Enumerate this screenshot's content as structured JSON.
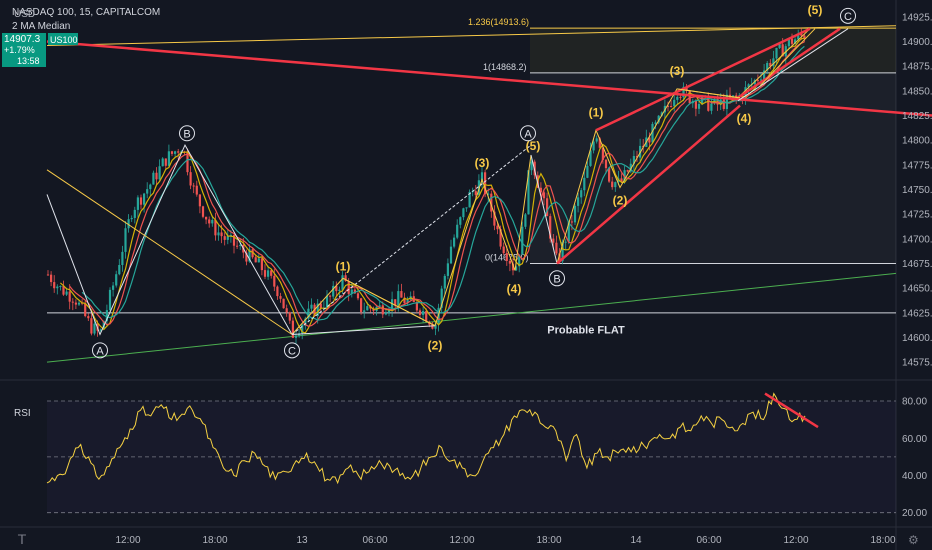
{
  "header": {
    "symbol_title": "NASDAQ 100, 15, CAPITALCOM",
    "indicator": "2 MA Median",
    "currency": "USD"
  },
  "price_badge": {
    "price": "14907.3",
    "change": "+1.79%",
    "countdown": "13:58",
    "ticker": "US100"
  },
  "colors": {
    "background": "#131722",
    "up_candle": "#26a69a",
    "down_candle": "#ef5350",
    "trend_red": "#f23645",
    "wave_yellow": "#f7c948",
    "white_lines": "#e0e3eb",
    "green_trend": "#4caf50",
    "ma_yellow": "#d4b106",
    "ma_green": "#26a69a",
    "ma_red": "#ef5350",
    "badge_green": "#089981",
    "rsi_line": "#f5d142"
  },
  "chart_data": [
    {
      "type": "candlestick",
      "title": "NASDAQ 100, 15, CAPITALCOM",
      "ylabel": "USD",
      "ylim": [
        14562,
        14937
      ],
      "y_ticks": [
        14575.0,
        14600.0,
        14625.0,
        14650.0,
        14675.0,
        14700.0,
        14725.0,
        14750.0,
        14775.0,
        14800.0,
        14825.0,
        14850.0,
        14875.0,
        14900.0,
        14925.0
      ],
      "x_ticks": [
        "12:00",
        "18:00",
        "13",
        "06:00",
        "12:00",
        "18:00",
        "14",
        "06:00",
        "12:00",
        "18:00"
      ],
      "close_path": [
        [
          "12:00-8",
          14665
        ],
        [
          "12:00-6",
          14648
        ],
        [
          "12:00-4",
          14612
        ],
        [
          "12:00-3",
          14603
        ],
        [
          "12:00",
          14655
        ],
        [
          "12:00+2",
          14720
        ],
        [
          "12:00+4",
          14765
        ],
        [
          "12:00+6",
          14798
        ],
        [
          "18:00-1",
          14760
        ],
        [
          "18:00",
          14730
        ],
        [
          "18:00+2",
          14700
        ],
        [
          "18:00+4",
          14680
        ],
        [
          "18:00+6",
          14660
        ],
        [
          "13",
          14603
        ],
        [
          "13+1",
          14625
        ],
        [
          "13+3",
          14660
        ],
        [
          "06:00",
          14630
        ],
        [
          "06:00+2",
          14640
        ],
        [
          "06:00+4",
          14635
        ],
        [
          "06:00+6",
          14612
        ],
        [
          "12:00b",
          14700
        ],
        [
          "12:00b+2",
          14755
        ],
        [
          "12:00b+3",
          14760
        ],
        [
          "12:00b+5",
          14670
        ],
        [
          "18:00b-1",
          14785
        ],
        [
          "18:00b",
          14735
        ],
        [
          "18:00b+1",
          14675
        ],
        [
          "18:00b+3",
          14740
        ],
        [
          "18:00b+5",
          14810
        ],
        [
          "14",
          14760
        ],
        [
          "14+2",
          14800
        ],
        [
          "14+4",
          14852
        ],
        [
          "06:00b",
          14835
        ],
        [
          "06:00b+2",
          14843
        ],
        [
          "06:00b+4",
          14880
        ],
        [
          "12:00c",
          14907
        ]
      ],
      "moving_averages": [
        "yellow",
        "green",
        "red"
      ],
      "levels": [
        {
          "label": "1.236(14913.6)",
          "value": 14913.6
        },
        {
          "label": "1(14868.2)",
          "value": 14868.2
        },
        {
          "label": "0(14675.0)",
          "value": 14675.0
        },
        {
          "label": "",
          "value": 14625
        }
      ],
      "annotation": "Probable FLAT",
      "wave_labels_yellow": [
        "(1)",
        "(2)",
        "(3)",
        "(4)",
        "(5)",
        "(1)",
        "(2)",
        "(3)",
        "(4)",
        "(5)",
        "(1)",
        "(2)",
        "(3)",
        "(4)",
        "(5)"
      ],
      "wave_labels_circled": [
        "A",
        "B",
        "C",
        "A",
        "B",
        "C"
      ],
      "last_price": 14907.3
    },
    {
      "type": "line",
      "title": "RSI",
      "ylim": [
        15,
        87
      ],
      "y_ticks": [
        20.0,
        40.0,
        60.0,
        80.0
      ],
      "levels": [
        80,
        50,
        20
      ],
      "values": [
        36,
        40,
        45,
        55,
        50,
        38,
        45,
        55,
        65,
        75,
        72,
        78,
        70,
        73,
        75,
        68,
        55,
        44,
        40,
        48,
        52,
        45,
        38,
        42,
        48,
        52,
        45,
        38,
        36,
        44,
        40,
        42,
        48,
        45,
        40,
        38,
        44,
        50,
        55,
        48,
        44,
        40,
        48,
        55,
        62,
        72,
        75,
        74,
        66,
        64,
        48,
        62,
        44,
        52,
        50,
        52,
        55,
        54,
        58,
        62,
        60,
        66,
        64,
        72,
        68,
        70,
        66,
        68,
        74,
        70,
        84,
        76,
        70,
        72
      ]
    }
  ]
}
